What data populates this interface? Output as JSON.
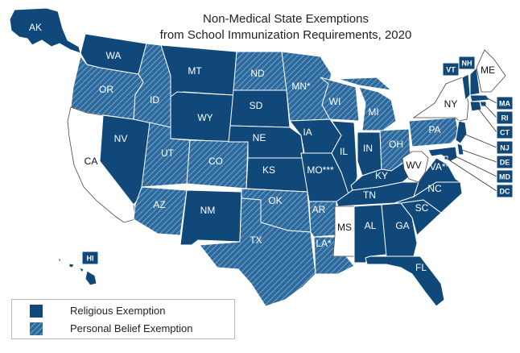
{
  "title": {
    "line1": "Non-Medical State Exemptions",
    "line2": "from School Immunization Requirements, 2020"
  },
  "legend": {
    "religious": "Religious Exemption",
    "personal": "Personal Belief Exemption"
  },
  "colors": {
    "religious": "#0f4879",
    "personal": "#2c6a9e",
    "hatch": "#8ab0d0",
    "none": "#ffffff",
    "outline": "#ffffff"
  },
  "states": [
    {
      "abbr": "AK",
      "label": "AK",
      "exemption": "religious"
    },
    {
      "abbr": "HI",
      "label": "HI",
      "exemption": "religious"
    },
    {
      "abbr": "WA",
      "label": "WA",
      "exemption": "religious"
    },
    {
      "abbr": "OR",
      "label": "OR",
      "exemption": "personal"
    },
    {
      "abbr": "CA",
      "label": "CA",
      "exemption": "none"
    },
    {
      "abbr": "NV",
      "label": "NV",
      "exemption": "religious"
    },
    {
      "abbr": "ID",
      "label": "ID",
      "exemption": "personal"
    },
    {
      "abbr": "MT",
      "label": "MT",
      "exemption": "religious"
    },
    {
      "abbr": "WY",
      "label": "WY",
      "exemption": "religious"
    },
    {
      "abbr": "UT",
      "label": "UT",
      "exemption": "personal"
    },
    {
      "abbr": "CO",
      "label": "CO",
      "exemption": "personal"
    },
    {
      "abbr": "AZ",
      "label": "AZ",
      "exemption": "personal"
    },
    {
      "abbr": "NM",
      "label": "NM",
      "exemption": "religious"
    },
    {
      "abbr": "ND",
      "label": "ND",
      "exemption": "personal"
    },
    {
      "abbr": "SD",
      "label": "SD",
      "exemption": "religious"
    },
    {
      "abbr": "NE",
      "label": "NE",
      "exemption": "religious"
    },
    {
      "abbr": "KS",
      "label": "KS",
      "exemption": "religious"
    },
    {
      "abbr": "OK",
      "label": "OK",
      "exemption": "personal"
    },
    {
      "abbr": "TX",
      "label": "TX",
      "exemption": "personal"
    },
    {
      "abbr": "MN",
      "label": "MN*",
      "exemption": "personal"
    },
    {
      "abbr": "IA",
      "label": "IA",
      "exemption": "religious"
    },
    {
      "abbr": "MO",
      "label": "MO***",
      "exemption": "religious"
    },
    {
      "abbr": "AR",
      "label": "AR",
      "exemption": "personal"
    },
    {
      "abbr": "LA",
      "label": "LA*",
      "exemption": "personal"
    },
    {
      "abbr": "WI",
      "label": "WI",
      "exemption": "personal"
    },
    {
      "abbr": "IL",
      "label": "IL",
      "exemption": "religious"
    },
    {
      "abbr": "MI",
      "label": "MI",
      "exemption": "personal"
    },
    {
      "abbr": "IN",
      "label": "IN",
      "exemption": "religious"
    },
    {
      "abbr": "OH",
      "label": "OH",
      "exemption": "personal"
    },
    {
      "abbr": "KY",
      "label": "KY",
      "exemption": "religious"
    },
    {
      "abbr": "TN",
      "label": "TN",
      "exemption": "religious"
    },
    {
      "abbr": "MS",
      "label": "MS",
      "exemption": "none"
    },
    {
      "abbr": "AL",
      "label": "AL",
      "exemption": "religious"
    },
    {
      "abbr": "GA",
      "label": "GA",
      "exemption": "religious"
    },
    {
      "abbr": "FL",
      "label": "FL",
      "exemption": "religious"
    },
    {
      "abbr": "SC",
      "label": "SC",
      "exemption": "religious"
    },
    {
      "abbr": "NC",
      "label": "NC",
      "exemption": "religious"
    },
    {
      "abbr": "VA",
      "label": "VA**",
      "exemption": "religious"
    },
    {
      "abbr": "WV",
      "label": "WV",
      "exemption": "none"
    },
    {
      "abbr": "PA",
      "label": "PA",
      "exemption": "personal"
    },
    {
      "abbr": "NY",
      "label": "NY",
      "exemption": "none"
    },
    {
      "abbr": "VT",
      "label": "VT",
      "exemption": "religious"
    },
    {
      "abbr": "NH",
      "label": "NH",
      "exemption": "religious"
    },
    {
      "abbr": "ME",
      "label": "ME",
      "exemption": "none"
    },
    {
      "abbr": "MA",
      "label": "MA",
      "exemption": "religious"
    },
    {
      "abbr": "RI",
      "label": "RI",
      "exemption": "religious"
    },
    {
      "abbr": "CT",
      "label": "CT",
      "exemption": "religious"
    },
    {
      "abbr": "NJ",
      "label": "NJ",
      "exemption": "religious"
    },
    {
      "abbr": "DE",
      "label": "DE",
      "exemption": "religious"
    },
    {
      "abbr": "MD",
      "label": "MD",
      "exemption": "religious"
    },
    {
      "abbr": "DC",
      "label": "DC",
      "exemption": "religious"
    }
  ]
}
